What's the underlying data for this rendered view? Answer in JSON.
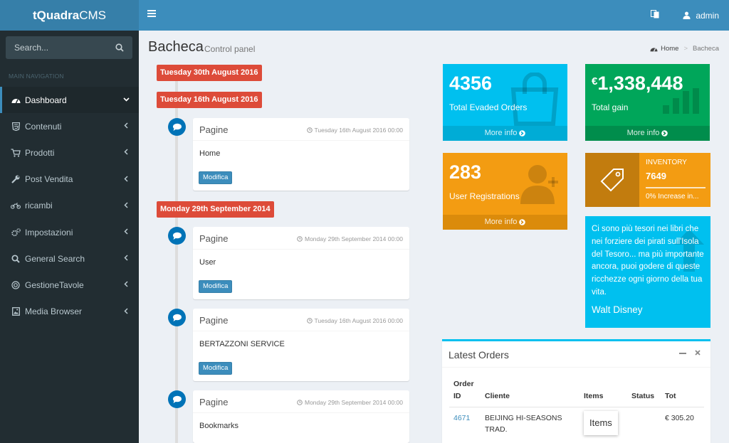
{
  "app": {
    "logo_bold": "tQuadra",
    "logo_rest": "CMS"
  },
  "topbar": {
    "user": "admin"
  },
  "sidebar": {
    "search_placeholder": "Search...",
    "nav_header": "MAIN NAVIGATION",
    "items": [
      {
        "label": "Dashboard",
        "icon": "dashboard-icon",
        "active": true
      },
      {
        "label": "Contenuti",
        "icon": "html5-icon"
      },
      {
        "label": "Prodotti",
        "icon": "cart-icon"
      },
      {
        "label": "Post Vendita",
        "icon": "wrench-icon"
      },
      {
        "label": "ricambi",
        "icon": "motorcycle-icon"
      },
      {
        "label": "Impostazioni",
        "icon": "cogs-icon"
      },
      {
        "label": "General Search",
        "icon": "search-icon"
      },
      {
        "label": "GestioneTavole",
        "icon": "life-ring-icon"
      },
      {
        "label": "Media Browser",
        "icon": "image-icon"
      }
    ]
  },
  "page": {
    "title": "Bacheca",
    "subtitle": "Control panel",
    "breadcrumb": {
      "home": "Home",
      "current": "Bacheca"
    }
  },
  "timeline": {
    "dates": [
      "Tuesday 30th August 2016",
      "Tuesday 16th August 2016",
      "Monday 29th September 2014"
    ],
    "entries": [
      {
        "title": "Pagine",
        "time": "Tuesday 16th August 2016 00:00",
        "body": "Home",
        "button": "Modifica"
      },
      {
        "title": "Pagine",
        "time": "Monday 29th September 2014 00:00",
        "body": "User",
        "button": "Modifica"
      },
      {
        "title": "Pagine",
        "time": "Tuesday 16th August 2016 00:00",
        "body": "BERTAZZONI SERVICE",
        "button": "Modifica"
      },
      {
        "title": "Pagine",
        "time": "Monday 29th September 2014 00:00",
        "body": "Bookmarks",
        "button": "Modifica"
      }
    ]
  },
  "stats": {
    "orders": {
      "value": "4356",
      "label": "Total Evaded Orders",
      "more": "More info",
      "color": "#00c0ef"
    },
    "gain": {
      "currency": "€",
      "value": "1,338,448",
      "label": "Total gain",
      "more": "More info",
      "color": "#00a65a"
    },
    "users": {
      "value": "283",
      "label": "User Registrations",
      "more": "More info",
      "color": "#f39c12"
    }
  },
  "inventory": {
    "label": "INVENTORY",
    "value": "7649",
    "note": "0% Increase in...",
    "progress": 1.0
  },
  "quote": {
    "text": "Ci sono più tesori nei libri che nei forziere dei pirati sull'Isola del Tesoro... ma più importante ancora, puoi godere di queste ricchezze ogni giorno della tua vita.",
    "author": "Walt Disney"
  },
  "latest_orders": {
    "title": "Latest Orders",
    "headers": [
      "Order ID",
      "Cliente",
      "Items",
      "Status",
      "Tot"
    ],
    "rows": [
      {
        "id": "4671",
        "client": "BEIJING HI-SEASONS TRAD.",
        "items_tooltip": "Items",
        "status": "",
        "tot": "€ 305.20"
      }
    ]
  }
}
